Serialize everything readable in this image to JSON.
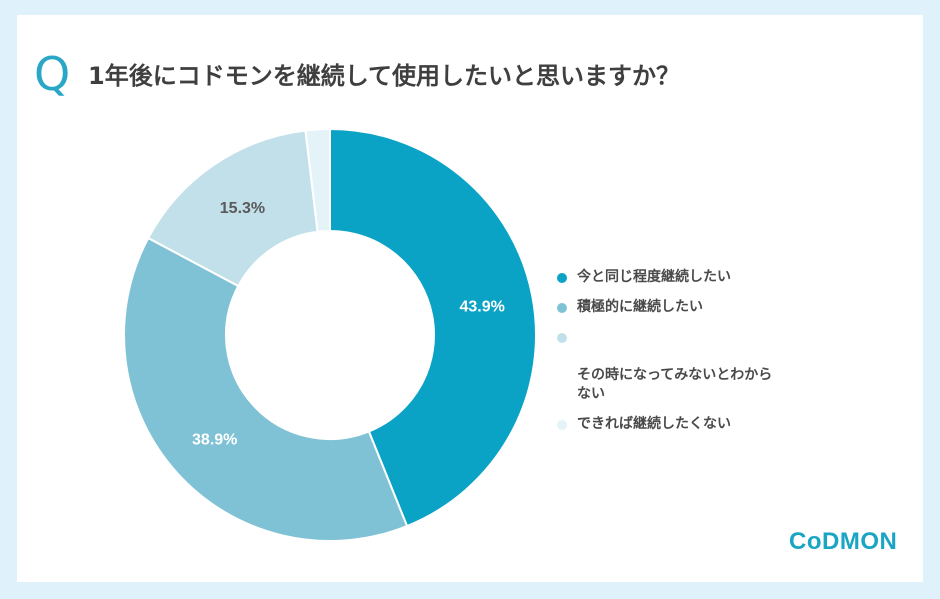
{
  "header": {
    "q_mark": "Q",
    "question": "1年後にコドモンを継続して使用したいと思いますか？"
  },
  "colors": {
    "page_background": "#dff1fb",
    "card_background": "#ffffff",
    "accent": "#2aa6c6"
  },
  "chart_data": {
    "type": "pie",
    "variant": "donut",
    "categories": [
      "今と同じ程度継続したい",
      "積極的に継続したい",
      "その時になってみないとわからない",
      "できれば継続したくない"
    ],
    "values": [
      43.9,
      38.9,
      15.3,
      1.9
    ],
    "data_labels": [
      "43.9%",
      "38.9%",
      "15.3%",
      ""
    ],
    "colors": [
      "#0aa2c5",
      "#80c2d5",
      "#c1e0ea",
      "#e4f3f8"
    ],
    "label_colors": [
      "#ffffff",
      "#ffffff",
      "#5a5a5a",
      "#5a5a5a"
    ],
    "legend_position": "right"
  },
  "legend": {
    "items": [
      {
        "label": "今と同じ程度継続したい"
      },
      {
        "label": "積極的に継続したい"
      },
      {
        "label": "その時になってみないとわから\nない"
      },
      {
        "label": "できれば継続したくない"
      }
    ]
  },
  "logo": {
    "text": "CoDMON"
  }
}
